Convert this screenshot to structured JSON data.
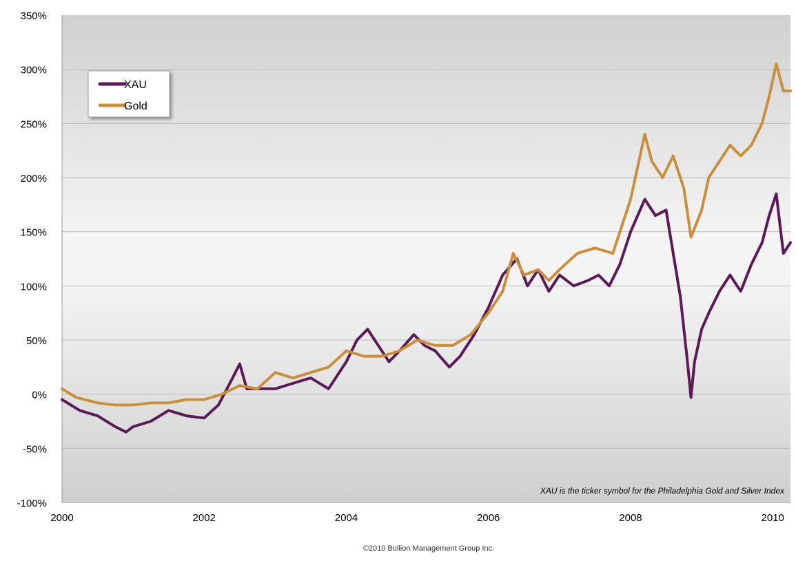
{
  "chart_data": {
    "type": "line",
    "title": "",
    "xlabel": "",
    "ylabel": "",
    "xlim": [
      2000,
      2010.25
    ],
    "ylim": [
      -100,
      350
    ],
    "x_ticks": [
      2000,
      2002,
      2004,
      2006,
      2008,
      2010
    ],
    "x_tick_labels": [
      "2000",
      "2002",
      "2004",
      "2006",
      "2008",
      "2010"
    ],
    "y_ticks": [
      -100,
      -50,
      0,
      50,
      100,
      150,
      200,
      250,
      300,
      350
    ],
    "y_tick_labels": [
      "-100%",
      "-50%",
      "0%",
      "50%",
      "100%",
      "150%",
      "200%",
      "250%",
      "300%",
      "350%"
    ],
    "grid": "horizontal",
    "legend_position": "top-left",
    "annotation": "XAU is the ticker symbol for the Philadelphia Gold and Silver Index",
    "series": [
      {
        "name": "XAU",
        "color": "#5a1a56",
        "x": [
          2000.0,
          2000.25,
          2000.5,
          2000.75,
          2000.9,
          2001.0,
          2001.25,
          2001.5,
          2001.75,
          2002.0,
          2002.2,
          2002.4,
          2002.5,
          2002.6,
          2002.75,
          2003.0,
          2003.25,
          2003.5,
          2003.75,
          2004.0,
          2004.15,
          2004.3,
          2004.45,
          2004.6,
          2004.75,
          2004.95,
          2005.1,
          2005.25,
          2005.45,
          2005.6,
          2005.8,
          2006.0,
          2006.2,
          2006.4,
          2006.55,
          2006.7,
          2006.85,
          2007.0,
          2007.2,
          2007.4,
          2007.55,
          2007.7,
          2007.85,
          2008.0,
          2008.1,
          2008.2,
          2008.35,
          2008.5,
          2008.6,
          2008.7,
          2008.8,
          2008.85,
          2008.9,
          2009.0,
          2009.1,
          2009.25,
          2009.4,
          2009.55,
          2009.7,
          2009.85,
          2009.95,
          2010.05,
          2010.15,
          2010.25
        ],
        "values": [
          -5,
          -15,
          -20,
          -30,
          -35,
          -30,
          -25,
          -15,
          -20,
          -22,
          -10,
          15,
          28,
          5,
          5,
          5,
          10,
          15,
          5,
          30,
          50,
          60,
          45,
          30,
          40,
          55,
          45,
          40,
          25,
          35,
          55,
          80,
          110,
          125,
          100,
          115,
          95,
          110,
          100,
          105,
          110,
          100,
          120,
          150,
          165,
          180,
          165,
          170,
          130,
          90,
          30,
          -3,
          30,
          60,
          75,
          95,
          110,
          95,
          120,
          140,
          165,
          185,
          130,
          140
        ]
      },
      {
        "name": "Gold",
        "color": "#c98f3a",
        "x": [
          2000.0,
          2000.2,
          2000.5,
          2000.75,
          2001.0,
          2001.25,
          2001.5,
          2001.75,
          2002.0,
          2002.25,
          2002.5,
          2002.75,
          2003.0,
          2003.25,
          2003.5,
          2003.75,
          2004.0,
          2004.25,
          2004.5,
          2004.75,
          2005.0,
          2005.25,
          2005.5,
          2005.75,
          2006.0,
          2006.2,
          2006.35,
          2006.5,
          2006.7,
          2006.85,
          2007.0,
          2007.25,
          2007.5,
          2007.75,
          2008.0,
          2008.1,
          2008.2,
          2008.3,
          2008.45,
          2008.6,
          2008.75,
          2008.85,
          2009.0,
          2009.1,
          2009.25,
          2009.4,
          2009.55,
          2009.7,
          2009.85,
          2009.95,
          2010.05,
          2010.15,
          2010.25
        ],
        "values": [
          5,
          -3,
          -8,
          -10,
          -10,
          -8,
          -8,
          -5,
          -5,
          0,
          8,
          5,
          20,
          15,
          20,
          25,
          40,
          35,
          35,
          40,
          50,
          45,
          45,
          55,
          75,
          95,
          130,
          110,
          115,
          105,
          115,
          130,
          135,
          130,
          180,
          210,
          240,
          215,
          200,
          220,
          190,
          145,
          170,
          200,
          215,
          230,
          220,
          230,
          250,
          275,
          305,
          280,
          280
        ]
      }
    ]
  },
  "footer": {
    "copyright": "©2010 Bullion Management Group Inc."
  }
}
